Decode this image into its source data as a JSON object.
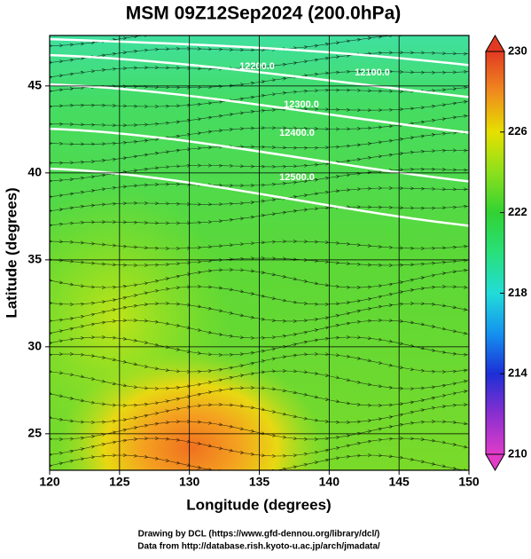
{
  "chart_data": {
    "type": "map",
    "title": "MSM 09Z12Sep2024 (200.0hPa)",
    "x_label": "Longitude (degrees)",
    "y_label": "Latitude  (degrees)",
    "xlim": [
      120,
      150
    ],
    "xticks": [
      120,
      125,
      130,
      135,
      140,
      145,
      150
    ],
    "ylim": [
      22.9,
      47.9
    ],
    "yticks": [
      25,
      30,
      35,
      40,
      45
    ],
    "grid": true,
    "contour_labels": [
      "12100.0",
      "12200.0",
      "12300.0",
      "12400.0",
      "12500.0"
    ],
    "colorbar": {
      "lim": [
        210,
        230
      ],
      "ticks": [
        210,
        214,
        218,
        222,
        226,
        230
      ],
      "colors": [
        "#e03cc8",
        "#8a2fd0",
        "#1c2fd6",
        "#1492f0",
        "#22dcd8",
        "#28e07a",
        "#32d232",
        "#8ce01c",
        "#e6e000",
        "#f08a1e",
        "#e23a22"
      ]
    }
  },
  "footer": [
    "Drawing by DCL (https://www.gfd-dennou.org/library/dcl/)",
    "Data from http://database.rish.kyoto-u.ac.jp/arch/jmadata/"
  ]
}
